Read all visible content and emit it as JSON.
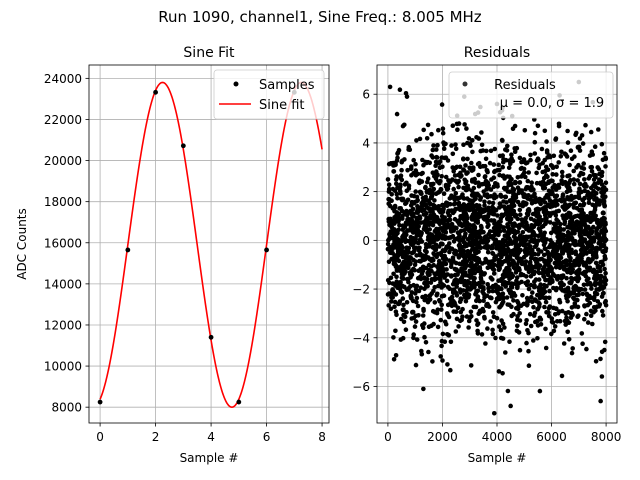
{
  "figure": {
    "suptitle": "Run 1090, channel1, Sine Freq.: 8.005 MHz"
  },
  "chart_data": [
    {
      "type": "line",
      "title": "Sine Fit",
      "xlabel": "Sample #",
      "ylabel": "ADC Counts",
      "xlim": [
        -0.4,
        8.25
      ],
      "ylim": [
        7230,
        24650
      ],
      "grid": true,
      "xticks": [
        0,
        2,
        4,
        6,
        8
      ],
      "yticks": [
        8000,
        10000,
        12000,
        14000,
        16000,
        18000,
        20000,
        22000,
        24000
      ],
      "series": [
        {
          "name": "Samples",
          "style": "points",
          "color": "#000000",
          "x": [
            0,
            1,
            2,
            3,
            4,
            5,
            6,
            7
          ],
          "y": [
            8250,
            15650,
            23320,
            20720,
            11400,
            8250,
            15650,
            23320
          ]
        },
        {
          "name": "Sine fit",
          "style": "line",
          "color": "#ff0000",
          "model": {
            "offset": 15900,
            "amplitude": 7900,
            "period": 5,
            "peak_at": 2.25
          },
          "x_range": [
            0,
            8
          ]
        }
      ],
      "legend": {
        "position": "top-right",
        "entries": [
          "Samples",
          "Sine fit"
        ]
      }
    },
    {
      "type": "scatter",
      "title": "Residuals",
      "xlabel": "Sample #",
      "ylabel": "",
      "xlim": [
        -400,
        8400
      ],
      "ylim": [
        -7.5,
        7.2
      ],
      "grid": true,
      "xticks": [
        0,
        2000,
        4000,
        6000,
        8000
      ],
      "yticks": [
        -6,
        -4,
        -2,
        0,
        2,
        4,
        6
      ],
      "series": [
        {
          "name": "Residuals",
          "color": "#000000",
          "n_points": 8000,
          "mean": 0.0,
          "std": 1.9,
          "outliers": [
            {
              "x": 80,
              "y": 6.3
            },
            {
              "x": 700,
              "y": 5.9
            },
            {
              "x": 2800,
              "y": 5.9
            },
            {
              "x": 3900,
              "y": -7.1
            },
            {
              "x": 4500,
              "y": -6.8
            },
            {
              "x": 7800,
              "y": -6.6
            },
            {
              "x": 4000,
              "y": 5.6
            },
            {
              "x": 1300,
              "y": -6.1
            },
            {
              "x": 7000,
              "y": 6.5
            }
          ]
        }
      ],
      "legend": {
        "position": "top-right",
        "entries": [
          "Residuals",
          "μ = 0.0, σ = 1.9"
        ]
      }
    }
  ]
}
